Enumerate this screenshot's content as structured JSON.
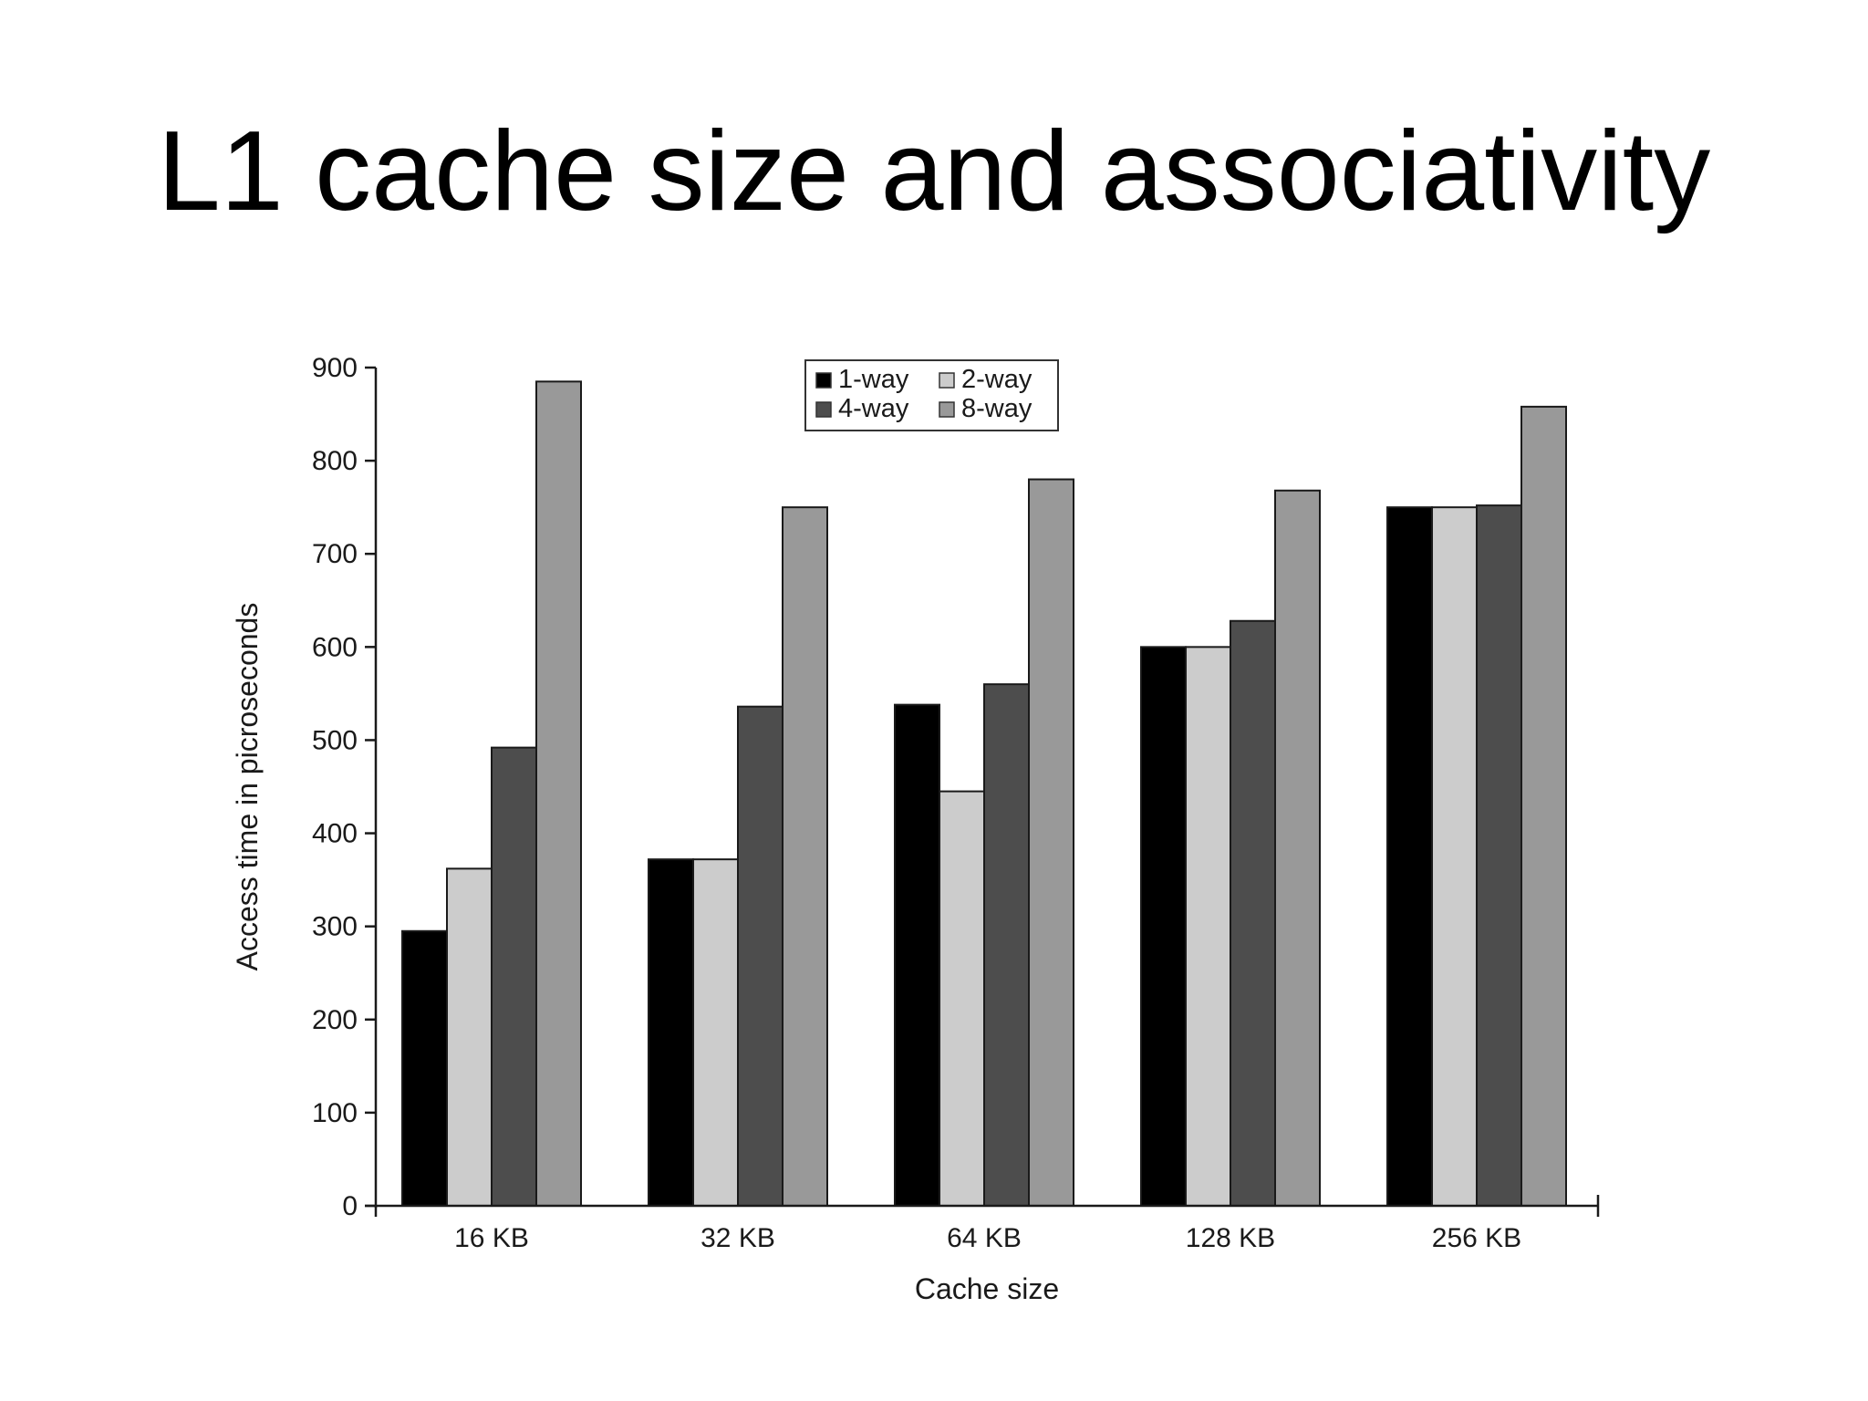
{
  "slide": {
    "title": "L1 cache size and associativity"
  },
  "chart_data": {
    "type": "bar",
    "title": "",
    "xlabel": "Cache size",
    "ylabel": "Access time in picroseconds",
    "categories": [
      "16 KB",
      "32 KB",
      "64 KB",
      "128 KB",
      "256 KB"
    ],
    "series": [
      {
        "name": "1-way",
        "color": "#000000",
        "values": [
          295,
          372,
          538,
          600,
          750
        ]
      },
      {
        "name": "2-way",
        "color": "#cccccc",
        "values": [
          362,
          372,
          445,
          600,
          750
        ]
      },
      {
        "name": "4-way",
        "color": "#4d4d4d",
        "values": [
          492,
          536,
          560,
          628,
          752
        ]
      },
      {
        "name": "8-way",
        "color": "#999999",
        "values": [
          885,
          750,
          780,
          768,
          858
        ]
      }
    ],
    "ylim": [
      0,
      900
    ],
    "yticks": [
      0,
      100,
      200,
      300,
      400,
      500,
      600,
      700,
      800,
      900
    ],
    "grid": false,
    "legend": {
      "placement": "top-center",
      "order": [
        "1-way",
        "2-way",
        "4-way",
        "8-way"
      ]
    }
  }
}
